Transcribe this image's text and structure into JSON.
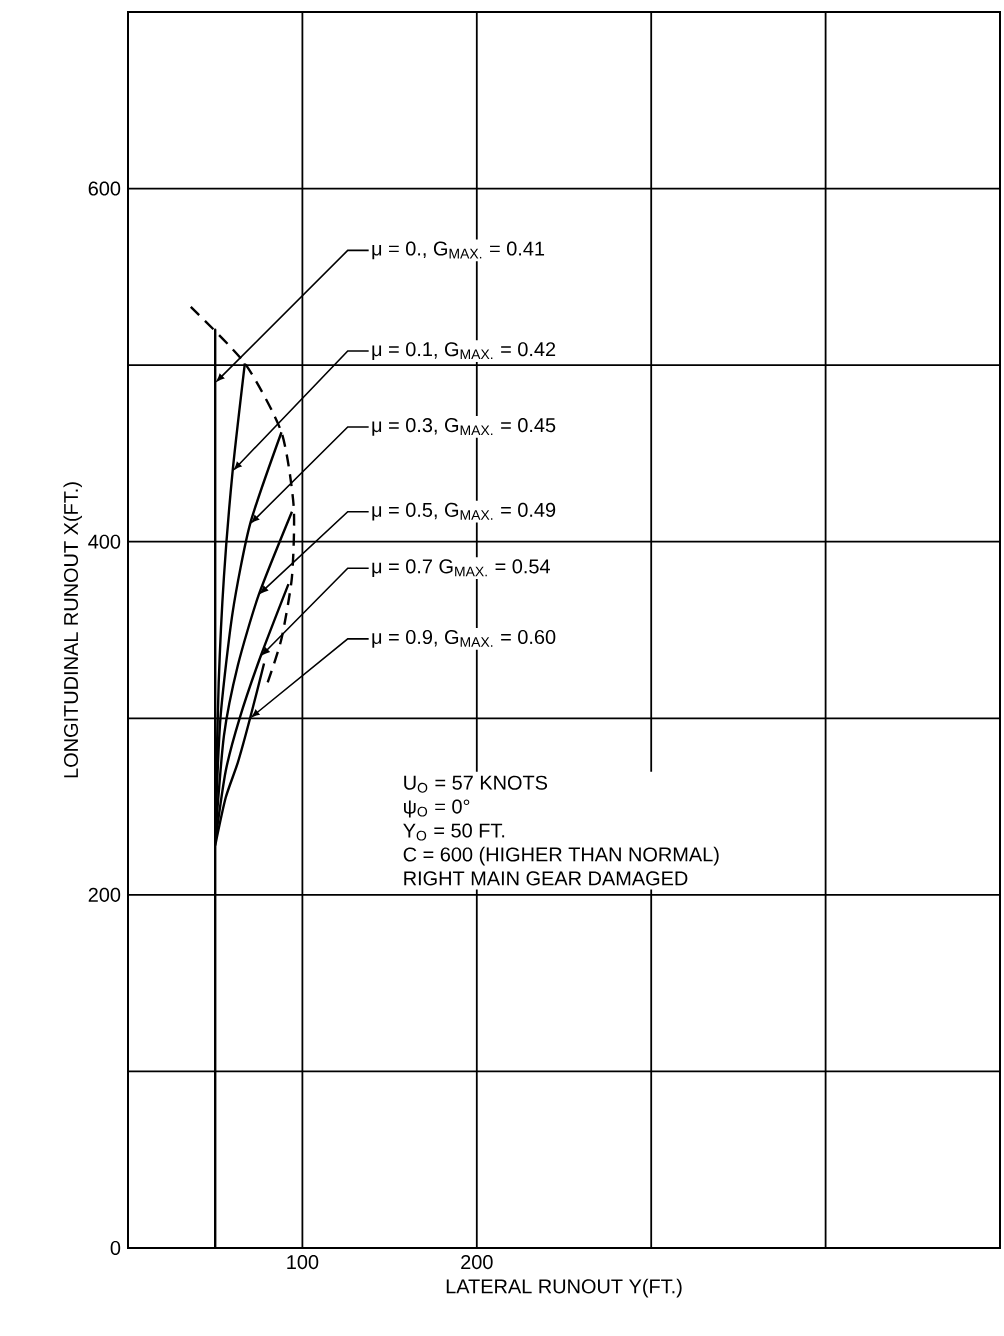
{
  "chart_data": {
    "type": "line",
    "xlabel": "LATERAL RUNOUT Y(FT.)",
    "ylabel": "LONGITUDINAL RUNOUT X(FT.)",
    "xlim": [
      0,
      500
    ],
    "ylim": [
      0,
      700
    ],
    "xticks": [
      {
        "value": 0,
        "label": null
      },
      100,
      200,
      {
        "value": 300,
        "label": null
      },
      {
        "value": 400,
        "label": null
      },
      {
        "value": 500,
        "label": null
      }
    ],
    "yticks": [
      0,
      {
        "value": 100,
        "label": null
      },
      200,
      {
        "value": 300,
        "label": null
      },
      400,
      {
        "value": 500,
        "label": null
      },
      600,
      {
        "value": 700,
        "label": null
      }
    ],
    "grid": true,
    "marker": "none",
    "line_style": "solid",
    "series": [
      {
        "name": "μ = 0., G$_{MAX.}$ = 0.41",
        "color": "#000000",
        "x": [
          50,
          50,
          50,
          50
        ],
        "values": [
          0,
          230,
          490,
          520
        ]
      },
      {
        "name": "μ = 0.1, G$_{MAX.}$ = 0.42",
        "color": "#000000",
        "x": [
          50,
          52,
          55,
          60,
          67
        ],
        "values": [
          240,
          320,
          380,
          440,
          501
        ]
      },
      {
        "name": "μ = 0.3, G$_{MAX.}$ = 0.45",
        "color": "#000000",
        "x": [
          50,
          53,
          60,
          70,
          88
        ],
        "values": [
          235,
          300,
          360,
          410,
          462
        ]
      },
      {
        "name": "μ = 0.5, G$_{MAX.}$ = 0.49",
        "color": "#000000",
        "x": [
          50,
          55,
          63,
          75,
          94
        ],
        "values": [
          232,
          290,
          330,
          370,
          417
        ]
      },
      {
        "name": "μ = 0.7 G$_{MAX.}$ = 0.54",
        "color": "#000000",
        "x": [
          50,
          56,
          64,
          76,
          92
        ],
        "values": [
          230,
          270,
          300,
          335,
          376
        ]
      },
      {
        "name": "μ = 0.9, G$_{MAX.}$ = 0.60",
        "color": "#000000",
        "x": [
          50,
          56,
          63,
          70,
          78
        ],
        "values": [
          228,
          255,
          275,
          300,
          331
        ]
      },
      {
        "color": "#000000",
        "line_style": "dashed",
        "x": [
          36,
          67,
          88,
          95,
          94,
          88,
          80
        ],
        "values": [
          533,
          501,
          462,
          420,
          380,
          345,
          320
        ]
      }
    ],
    "annotations": [
      "U$_{O}$ = 57 KNOTS",
      "ψ$_{O}$ = 0°",
      "Y$_{O}$ = 50 FT.",
      "C = 600 (HIGHER THAN NORMAL)",
      "RIGHT MAIN GEAR DAMAGED"
    ]
  }
}
